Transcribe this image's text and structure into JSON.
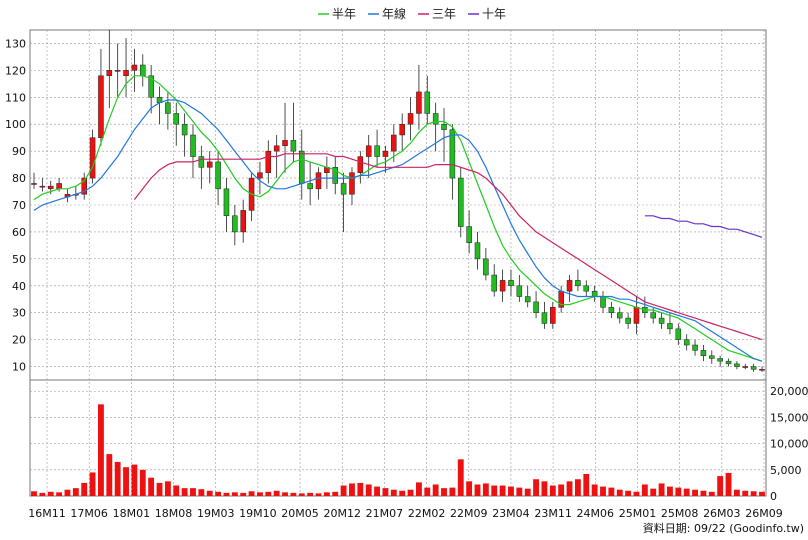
{
  "chart_data": {
    "type": "candlestick",
    "legend": {
      "placement": "top-center",
      "items": [
        {
          "label": "半年",
          "color": "#22cc22"
        },
        {
          "label": "年線",
          "color": "#2277dd"
        },
        {
          "label": "三年",
          "color": "#cc2266"
        },
        {
          "label": "十年",
          "color": "#6633cc"
        }
      ]
    },
    "price_axis": {
      "ticks": [
        10,
        20,
        30,
        40,
        50,
        60,
        70,
        80,
        90,
        100,
        110,
        120,
        130
      ],
      "ylim": [
        5,
        135
      ]
    },
    "volume_axis": {
      "ticks": [
        "0",
        "5,000",
        "10,000",
        "15,000",
        "20,000"
      ],
      "values": [
        0,
        5000,
        10000,
        15000,
        20000
      ],
      "ylim": [
        0,
        21000
      ]
    },
    "x_labels": [
      "16M11",
      "17M06",
      "18M01",
      "18M08",
      "19M03",
      "19M10",
      "20M05",
      "20M12",
      "21M07",
      "22M02",
      "22M09",
      "23M04",
      "23M11",
      "24M06",
      "25M01",
      "25M08",
      "26M03",
      "26M09"
    ],
    "grid": true,
    "colors": {
      "up": "#ee1111",
      "down": "#22bb22",
      "volume": "#ee1111"
    },
    "candles": [
      [
        78,
        82,
        76,
        78
      ],
      [
        77,
        80,
        75,
        77
      ],
      [
        76,
        79,
        74,
        77
      ],
      [
        76,
        80,
        75,
        78
      ],
      [
        73,
        76,
        71,
        74
      ],
      [
        74,
        77,
        72,
        74
      ],
      [
        74,
        82,
        72,
        80
      ],
      [
        80,
        98,
        78,
        95
      ],
      [
        95,
        128,
        92,
        118
      ],
      [
        118,
        135,
        106,
        120
      ],
      [
        120,
        130,
        110,
        120
      ],
      [
        118,
        132,
        110,
        120
      ],
      [
        120,
        128,
        112,
        122
      ],
      [
        122,
        126,
        114,
        118
      ],
      [
        118,
        122,
        104,
        110
      ],
      [
        110,
        114,
        100,
        108
      ],
      [
        108,
        112,
        98,
        104
      ],
      [
        104,
        108,
        92,
        100
      ],
      [
        100,
        104,
        88,
        96
      ],
      [
        96,
        100,
        80,
        88
      ],
      [
        88,
        92,
        76,
        84
      ],
      [
        84,
        90,
        78,
        86
      ],
      [
        86,
        90,
        70,
        76
      ],
      [
        76,
        80,
        60,
        66
      ],
      [
        66,
        70,
        55,
        60
      ],
      [
        60,
        72,
        56,
        68
      ],
      [
        68,
        82,
        64,
        80
      ],
      [
        80,
        86,
        74,
        82
      ],
      [
        82,
        94,
        78,
        90
      ],
      [
        90,
        96,
        80,
        92
      ],
      [
        92,
        108,
        82,
        94
      ],
      [
        94,
        108,
        86,
        90
      ],
      [
        90,
        98,
        72,
        78
      ],
      [
        78,
        86,
        70,
        76
      ],
      [
        76,
        84,
        72,
        82
      ],
      [
        82,
        88,
        76,
        84
      ],
      [
        84,
        88,
        74,
        78
      ],
      [
        78,
        82,
        60,
        74
      ],
      [
        74,
        84,
        70,
        82
      ],
      [
        82,
        90,
        78,
        88
      ],
      [
        88,
        96,
        80,
        92
      ],
      [
        92,
        98,
        84,
        88
      ],
      [
        88,
        92,
        82,
        90
      ],
      [
        90,
        100,
        86,
        96
      ],
      [
        96,
        104,
        90,
        100
      ],
      [
        100,
        110,
        94,
        104
      ],
      [
        104,
        122,
        98,
        112
      ],
      [
        112,
        118,
        100,
        104
      ],
      [
        104,
        108,
        90,
        100
      ],
      [
        100,
        106,
        86,
        98
      ],
      [
        98,
        100,
        72,
        80
      ],
      [
        80,
        84,
        58,
        62
      ],
      [
        62,
        68,
        52,
        56
      ],
      [
        56,
        60,
        46,
        50
      ],
      [
        50,
        54,
        42,
        44
      ],
      [
        44,
        48,
        36,
        38
      ],
      [
        38,
        46,
        34,
        42
      ],
      [
        42,
        46,
        36,
        40
      ],
      [
        40,
        44,
        34,
        36
      ],
      [
        36,
        40,
        32,
        34
      ],
      [
        34,
        38,
        28,
        30
      ],
      [
        30,
        34,
        24,
        26
      ],
      [
        26,
        34,
        24,
        32
      ],
      [
        32,
        40,
        30,
        38
      ],
      [
        38,
        44,
        34,
        42
      ],
      [
        42,
        46,
        38,
        40
      ],
      [
        40,
        42,
        36,
        38
      ],
      [
        38,
        40,
        34,
        36
      ],
      [
        36,
        38,
        30,
        32
      ],
      [
        32,
        34,
        28,
        30
      ],
      [
        30,
        32,
        26,
        28
      ],
      [
        28,
        30,
        24,
        26
      ],
      [
        26,
        36,
        22,
        32
      ],
      [
        32,
        36,
        28,
        30
      ],
      [
        30,
        32,
        26,
        28
      ],
      [
        28,
        30,
        24,
        26
      ],
      [
        26,
        30,
        22,
        24
      ],
      [
        24,
        26,
        18,
        20
      ],
      [
        20,
        22,
        16,
        18
      ],
      [
        18,
        20,
        14,
        16
      ],
      [
        16,
        18,
        12,
        14
      ],
      [
        14,
        16,
        11,
        13
      ],
      [
        13,
        14,
        10,
        12
      ],
      [
        12,
        13,
        10,
        11
      ],
      [
        11,
        12,
        9,
        10
      ],
      [
        10,
        11,
        9,
        10
      ],
      [
        10,
        11,
        8,
        9
      ],
      [
        9,
        10,
        8,
        9
      ]
    ],
    "ma_half": [
      72,
      74,
      75,
      76,
      76,
      77,
      79,
      84,
      93,
      102,
      110,
      115,
      118,
      118,
      117,
      115,
      112,
      109,
      105,
      101,
      97,
      94,
      90,
      85,
      80,
      76,
      74,
      73,
      75,
      79,
      83,
      86,
      87,
      86,
      85,
      84,
      83,
      81,
      80,
      81,
      83,
      85,
      86,
      88,
      90,
      93,
      97,
      100,
      101,
      101,
      99,
      94,
      86,
      78,
      70,
      62,
      55,
      50,
      46,
      43,
      40,
      37,
      35,
      33,
      33,
      34,
      35,
      36,
      36,
      35,
      34,
      33,
      32,
      31,
      31,
      30,
      29,
      28,
      26,
      24,
      22,
      20,
      18,
      16,
      15,
      14,
      13,
      12
    ],
    "ma_year": [
      68,
      70,
      71,
      72,
      73,
      74,
      75,
      77,
      80,
      84,
      88,
      93,
      98,
      102,
      106,
      108,
      109,
      109,
      108,
      106,
      104,
      101,
      98,
      94,
      90,
      86,
      82,
      79,
      77,
      76,
      76,
      77,
      78,
      79,
      80,
      80,
      80,
      80,
      80,
      81,
      81,
      82,
      83,
      84,
      85,
      87,
      89,
      91,
      93,
      95,
      96,
      96,
      94,
      90,
      84,
      77,
      70,
      63,
      57,
      52,
      47,
      43,
      40,
      38,
      37,
      36,
      36,
      36,
      36,
      36,
      35,
      35,
      34,
      33,
      32,
      31,
      30,
      29,
      28,
      27,
      25,
      23,
      21,
      19,
      17,
      15,
      13,
      12
    ],
    "ma_3y": [
      null,
      null,
      null,
      null,
      null,
      null,
      null,
      null,
      null,
      null,
      null,
      null,
      72,
      76,
      80,
      83,
      85,
      86,
      86,
      86,
      87,
      87,
      87,
      87,
      87,
      87,
      87,
      87,
      88,
      88,
      89,
      89,
      89,
      89,
      89,
      89,
      88,
      88,
      87,
      86,
      85,
      84,
      84,
      84,
      84,
      84,
      84,
      84,
      85,
      85,
      85,
      84,
      83,
      82,
      80,
      77,
      74,
      70,
      66,
      63,
      60,
      58,
      56,
      54,
      52,
      50,
      48,
      46,
      44,
      42,
      40,
      38,
      36,
      34,
      33,
      32,
      31,
      30,
      29,
      28,
      27,
      26,
      25,
      24,
      23,
      22,
      21,
      20
    ],
    "ma_10y": [
      null,
      null,
      null,
      null,
      null,
      null,
      null,
      null,
      null,
      null,
      null,
      null,
      null,
      null,
      null,
      null,
      null,
      null,
      null,
      null,
      null,
      null,
      null,
      null,
      null,
      null,
      null,
      null,
      null,
      null,
      null,
      null,
      null,
      null,
      null,
      null,
      null,
      null,
      null,
      null,
      null,
      null,
      null,
      null,
      null,
      null,
      null,
      null,
      null,
      null,
      null,
      null,
      null,
      null,
      null,
      null,
      null,
      null,
      null,
      null,
      null,
      null,
      null,
      null,
      null,
      null,
      null,
      null,
      null,
      null,
      null,
      null,
      null,
      66,
      66,
      65,
      65,
      64,
      64,
      63,
      63,
      62,
      62,
      61,
      61,
      60,
      59,
      58
    ],
    "volume": [
      900,
      600,
      800,
      700,
      1200,
      1500,
      2500,
      4500,
      17500,
      8000,
      6500,
      5500,
      6000,
      5000,
      3500,
      2500,
      2800,
      2000,
      1500,
      1500,
      1300,
      1000,
      800,
      600,
      700,
      600,
      900,
      700,
      800,
      1000,
      700,
      600,
      500,
      600,
      500,
      700,
      800,
      2000,
      2400,
      2500,
      2200,
      1800,
      1500,
      1200,
      1000,
      1200,
      2600,
      1600,
      2200,
      1500,
      1600,
      7000,
      2800,
      2200,
      2400,
      2000,
      2000,
      1800,
      1600,
      1400,
      3200,
      2800,
      2000,
      2200,
      2800,
      3200,
      4200,
      2200,
      1800,
      1600,
      1200,
      1000,
      800,
      2200,
      1400,
      2400,
      1800,
      1600,
      1400,
      1200,
      1000,
      800,
      3800,
      4400,
      1200,
      1000,
      900,
      800
    ]
  },
  "footer": {
    "credit": "資料日期: 09/22 (Goodinfo.tw)"
  }
}
